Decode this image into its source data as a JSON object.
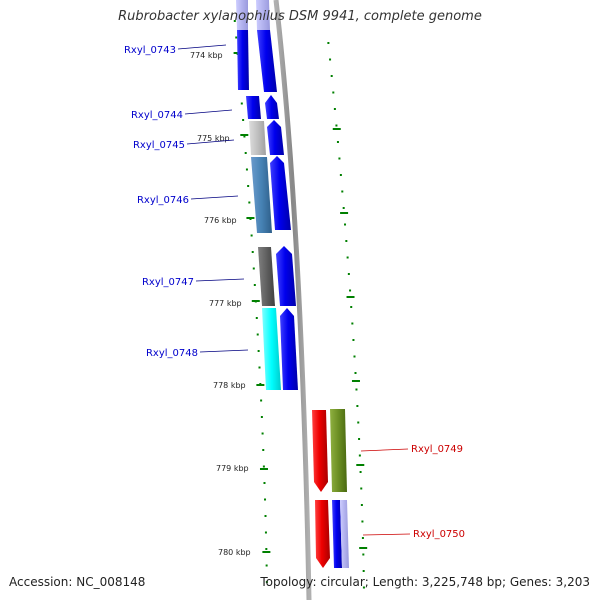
{
  "title": "Rubrobacter xylanophilus DSM 9941, complete genome",
  "footer": {
    "accession": "Accession: NC_008148",
    "summary": "Topology: circular; Length: 3,225,748 bp; Genes: 3,203"
  },
  "ruler": [
    "774 kbp",
    "775 kbp",
    "776 kbp",
    "777 kbp",
    "778 kbp",
    "779 kbp",
    "780 kbp"
  ],
  "colors": {
    "gene_blue": "#0000ee",
    "gene_red": "#ee0000",
    "cog_olive": "#6b8e23",
    "cog_gray": "#c0c0c0",
    "cog_steelblue": "#4682b4",
    "cog_darkgray": "#606060",
    "cog_cyan": "#00ffff",
    "backbone": "#909090",
    "tick_green": "#008000"
  },
  "genes": [
    {
      "label": "Rxyl_0743",
      "strand": "+",
      "color": "blue"
    },
    {
      "label": "Rxyl_0744",
      "strand": "+",
      "color": "blue"
    },
    {
      "label": "Rxyl_0745",
      "strand": "+",
      "color": "blue"
    },
    {
      "label": "Rxyl_0746",
      "strand": "+",
      "color": "blue"
    },
    {
      "label": "Rxyl_0747",
      "strand": "+",
      "color": "blue"
    },
    {
      "label": "Rxyl_0748",
      "strand": "+",
      "color": "blue"
    },
    {
      "label": "Rxyl_0749",
      "strand": "-",
      "color": "red"
    },
    {
      "label": "Rxyl_0750",
      "strand": "-",
      "color": "red"
    }
  ]
}
